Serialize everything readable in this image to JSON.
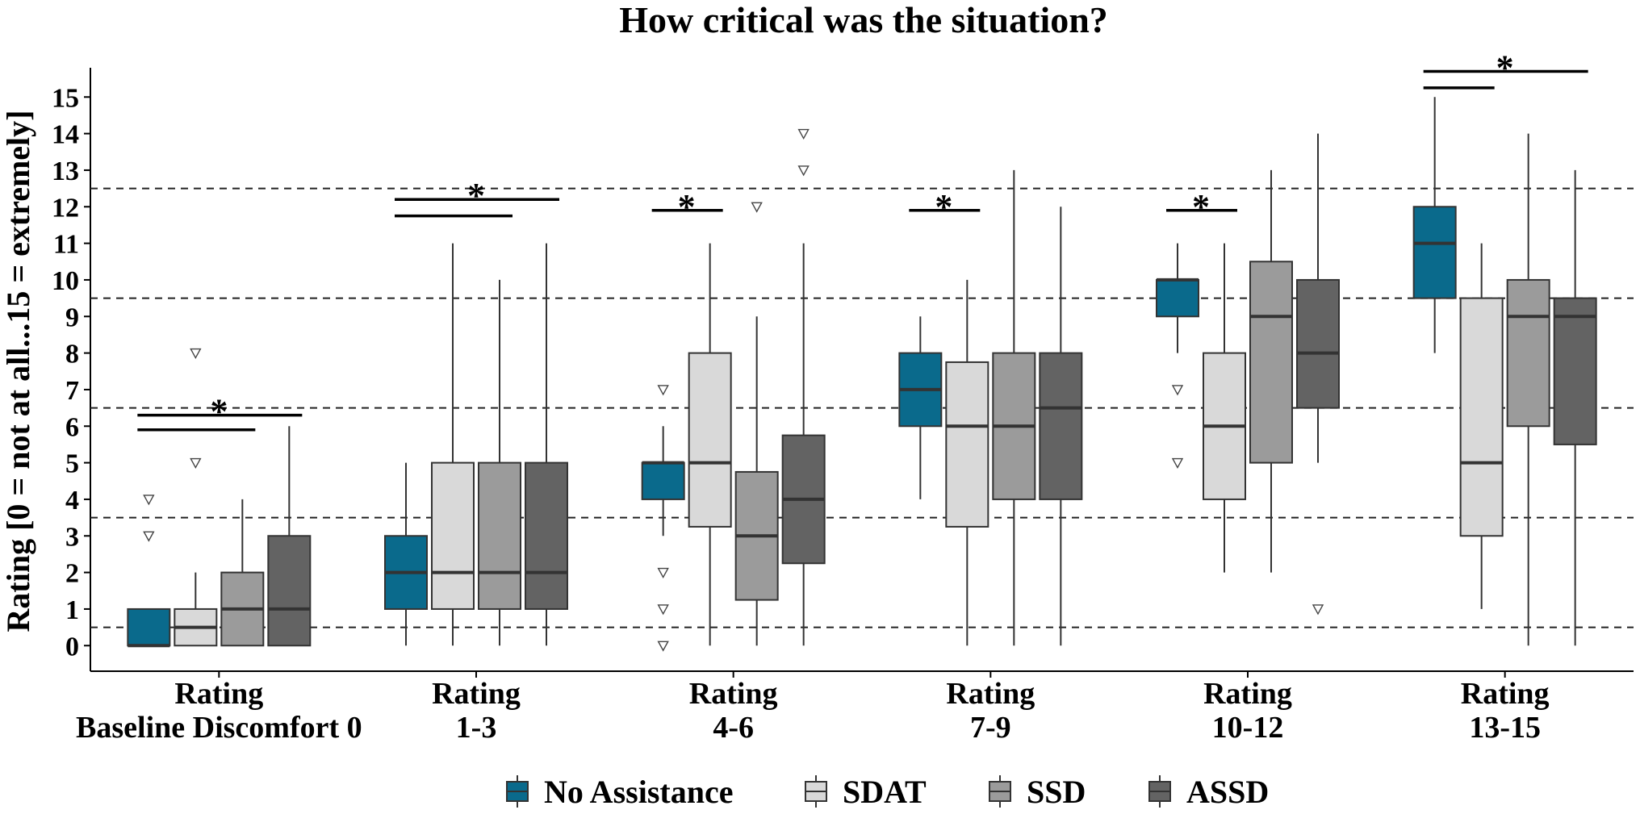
{
  "chart_data": {
    "type": "boxplot",
    "title": "How critical was the situation?",
    "xlabel": "",
    "ylabel": "Rating [0 = not at all...15 = extremely]",
    "ylim": [
      -0.7,
      15.8
    ],
    "yticks": [
      "0",
      "1",
      "2",
      "3",
      "4",
      "5",
      "6",
      "7",
      "8",
      "9",
      "10",
      "11",
      "12",
      "13",
      "14",
      "15"
    ],
    "reference_lines": [
      0.5,
      3.5,
      6.5,
      9.5,
      12.5
    ],
    "legend_position": "bottom",
    "grid": false,
    "series": [
      {
        "name": "No Assistance",
        "color": "#0a6a8c"
      },
      {
        "name": "SDAT",
        "color": "#d9d9d9"
      },
      {
        "name": "SSD",
        "color": "#9b9b9b"
      },
      {
        "name": "ASSD",
        "color": "#636363"
      }
    ],
    "groups": [
      {
        "label_line1": "Rating",
        "label_line2": "Baseline Discomfort 0",
        "boxes": [
          {
            "series": "No Assistance",
            "min": 0,
            "q1": 0,
            "median": 0,
            "q3": 1,
            "max": 1,
            "outliers": [
              3,
              4
            ]
          },
          {
            "series": "SDAT",
            "min": 0,
            "q1": 0,
            "median": 0.5,
            "q3": 1,
            "max": 2,
            "outliers": [
              5,
              8
            ]
          },
          {
            "series": "SSD",
            "min": 0,
            "q1": 0,
            "median": 1,
            "q3": 2,
            "max": 4,
            "outliers": []
          },
          {
            "series": "ASSD",
            "min": 0,
            "q1": 0,
            "median": 1,
            "q3": 3,
            "max": 6,
            "outliers": []
          }
        ],
        "significance": {
          "star": "*",
          "brackets": [
            [
              "No Assistance",
              "SSD"
            ],
            [
              "No Assistance",
              "ASSD"
            ]
          ]
        }
      },
      {
        "label_line1": "Rating",
        "label_line2": "1-3",
        "boxes": [
          {
            "series": "No Assistance",
            "min": 0,
            "q1": 1,
            "median": 2,
            "q3": 3,
            "max": 5,
            "outliers": []
          },
          {
            "series": "SDAT",
            "min": 0,
            "q1": 1,
            "median": 2,
            "q3": 5,
            "max": 11,
            "outliers": []
          },
          {
            "series": "SSD",
            "min": 0,
            "q1": 1,
            "median": 2,
            "q3": 5,
            "max": 10,
            "outliers": []
          },
          {
            "series": "ASSD",
            "min": 0,
            "q1": 1,
            "median": 2,
            "q3": 5,
            "max": 11,
            "outliers": []
          }
        ],
        "significance": {
          "star": "*",
          "brackets": [
            [
              "No Assistance",
              "SSD"
            ],
            [
              "No Assistance",
              "ASSD"
            ]
          ]
        }
      },
      {
        "label_line1": "Rating",
        "label_line2": "4-6",
        "boxes": [
          {
            "series": "No Assistance",
            "min": 3,
            "q1": 4,
            "median": 5,
            "q3": 5,
            "max": 6,
            "outliers": [
              0,
              1,
              2,
              7
            ]
          },
          {
            "series": "SDAT",
            "min": 0,
            "q1": 3.25,
            "median": 5,
            "q3": 8,
            "max": 11,
            "outliers": []
          },
          {
            "series": "SSD",
            "min": 0,
            "q1": 1.25,
            "median": 3,
            "q3": 4.75,
            "max": 9,
            "outliers": [
              12
            ]
          },
          {
            "series": "ASSD",
            "min": 0,
            "q1": 2.25,
            "median": 4,
            "q3": 5.75,
            "max": 11,
            "outliers": [
              13,
              14
            ]
          }
        ],
        "significance": {
          "star": "*",
          "brackets": [
            [
              "No Assistance",
              "SDAT"
            ]
          ]
        }
      },
      {
        "label_line1": "Rating",
        "label_line2": "7-9",
        "boxes": [
          {
            "series": "No Assistance",
            "min": 4,
            "q1": 6,
            "median": 7,
            "q3": 8,
            "max": 9,
            "outliers": []
          },
          {
            "series": "SDAT",
            "min": 0,
            "q1": 3.25,
            "median": 6,
            "q3": 7.75,
            "max": 10,
            "outliers": []
          },
          {
            "series": "SSD",
            "min": 0,
            "q1": 4,
            "median": 6,
            "q3": 8,
            "max": 13,
            "outliers": []
          },
          {
            "series": "ASSD",
            "min": 0,
            "q1": 4,
            "median": 6.5,
            "q3": 8,
            "max": 12,
            "outliers": []
          }
        ],
        "significance": {
          "star": "*",
          "brackets": [
            [
              "No Assistance",
              "SDAT"
            ]
          ]
        }
      },
      {
        "label_line1": "Rating",
        "label_line2": "10-12",
        "boxes": [
          {
            "series": "No Assistance",
            "min": 8,
            "q1": 9,
            "median": 10,
            "q3": 10,
            "max": 11,
            "outliers": [
              5,
              7
            ]
          },
          {
            "series": "SDAT",
            "min": 2,
            "q1": 4,
            "median": 6,
            "q3": 8,
            "max": 11,
            "outliers": []
          },
          {
            "series": "SSD",
            "min": 2,
            "q1": 5,
            "median": 9,
            "q3": 10.5,
            "max": 13,
            "outliers": []
          },
          {
            "series": "ASSD",
            "min": 5,
            "q1": 6.5,
            "median": 8,
            "q3": 10,
            "max": 14,
            "outliers": [
              1
            ]
          }
        ],
        "significance": {
          "star": "*",
          "brackets": [
            [
              "No Assistance",
              "SDAT"
            ]
          ]
        }
      },
      {
        "label_line1": "Rating",
        "label_line2": "13-15",
        "boxes": [
          {
            "series": "No Assistance",
            "min": 8,
            "q1": 9.5,
            "median": 11,
            "q3": 12,
            "max": 15,
            "outliers": []
          },
          {
            "series": "SDAT",
            "min": 1,
            "q1": 3,
            "median": 5,
            "q3": 9.5,
            "max": 11,
            "outliers": []
          },
          {
            "series": "SSD",
            "min": 0,
            "q1": 6,
            "median": 9,
            "q3": 10,
            "max": 14,
            "outliers": []
          },
          {
            "series": "ASSD",
            "min": 0,
            "q1": 5.5,
            "median": 9,
            "q3": 9.5,
            "max": 13,
            "outliers": []
          }
        ],
        "significance": {
          "star": "*",
          "brackets": [
            [
              "No Assistance",
              "SDAT"
            ],
            [
              "No Assistance",
              "ASSD"
            ]
          ]
        }
      }
    ]
  }
}
